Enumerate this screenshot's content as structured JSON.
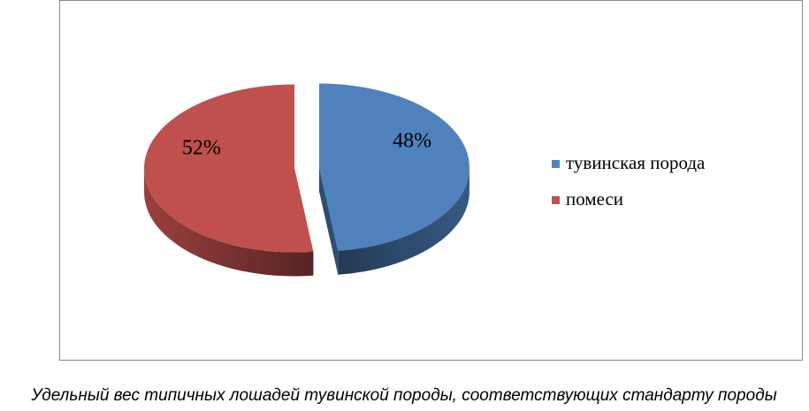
{
  "chart_data": {
    "type": "pie",
    "categories": [
      "тувинская порода",
      "помеси"
    ],
    "values": [
      48,
      52
    ],
    "value_labels": [
      "48%",
      "52%"
    ],
    "colors": [
      "#4f81bd",
      "#c0504d"
    ],
    "caption": "Удельный вес типичных лошадей тувинской породы, соответствующих стандарту породы",
    "legend": "right"
  }
}
